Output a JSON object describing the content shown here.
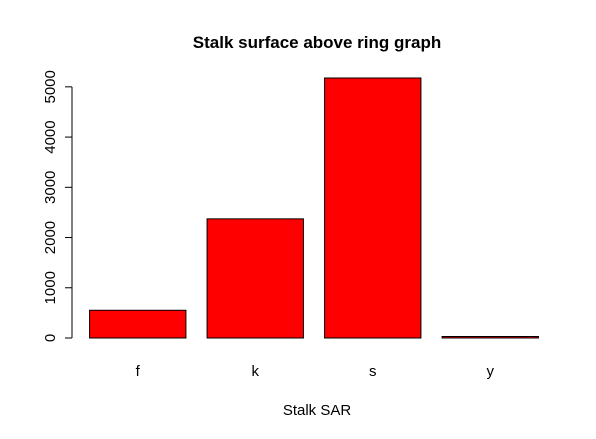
{
  "chart_data": {
    "type": "bar",
    "title": "Stalk surface above ring graph",
    "xlabel": "Stalk SAR",
    "ylabel": "",
    "categories": [
      "f",
      "k",
      "s",
      "y"
    ],
    "values": [
      552,
      2372,
      5176,
      24
    ],
    "yticks": [
      0,
      1000,
      2000,
      3000,
      4000,
      5000
    ],
    "ylim": [
      0,
      5176
    ],
    "bar_color": "#ff0000",
    "bar_border_color": "#000000",
    "grid": false,
    "legend": "none"
  }
}
